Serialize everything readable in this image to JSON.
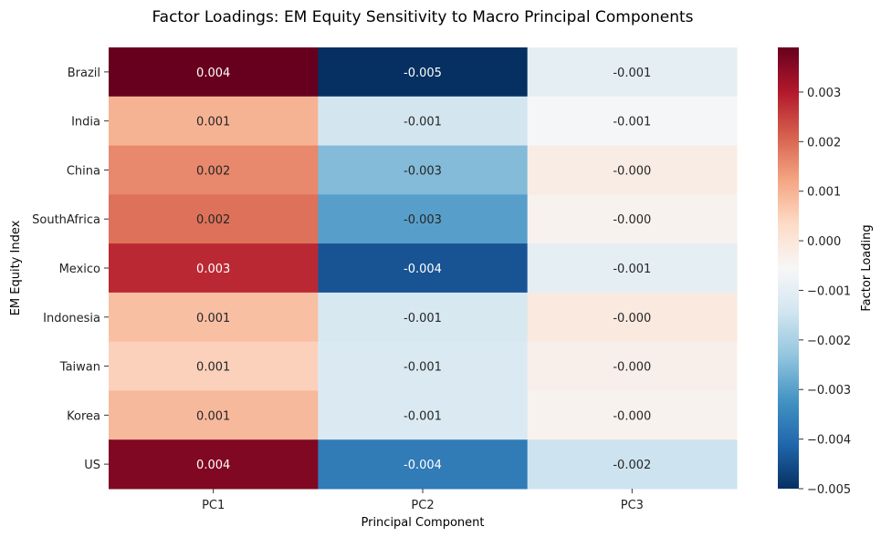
{
  "chart_data": {
    "type": "heatmap",
    "title": "Factor Loadings: EM Equity Sensitivity to Macro Principal Components",
    "xlabel": "Principal Component",
    "ylabel": "EM Equity Index",
    "x_categories": [
      "PC1",
      "PC2",
      "PC3"
    ],
    "y_categories": [
      "Brazil",
      "India",
      "China",
      "SouthAfrica",
      "Mexico",
      "Indonesia",
      "Taiwan",
      "Korea",
      "US"
    ],
    "values": [
      [
        0.0039,
        -0.005,
        -0.001
      ],
      [
        0.001,
        -0.0014,
        -0.0006
      ],
      [
        0.0016,
        -0.0025,
        -0.0002
      ],
      [
        0.0019,
        -0.003,
        -0.0004
      ],
      [
        0.0028,
        -0.0044,
        -0.001
      ],
      [
        0.0008,
        -0.0013,
        -0.0001
      ],
      [
        0.0005,
        -0.0012,
        -0.0003
      ],
      [
        0.0009,
        -0.0012,
        -0.0004
      ],
      [
        0.0036,
        -0.0037,
        -0.0015
      ]
    ],
    "cell_labels": [
      [
        "0.004",
        "-0.005",
        "-0.001"
      ],
      [
        "0.001",
        "-0.001",
        "-0.001"
      ],
      [
        "0.002",
        "-0.003",
        "-0.000"
      ],
      [
        "0.002",
        "-0.003",
        "-0.000"
      ],
      [
        "0.003",
        "-0.004",
        "-0.001"
      ],
      [
        "0.001",
        "-0.001",
        "-0.000"
      ],
      [
        "0.001",
        "-0.001",
        "-0.000"
      ],
      [
        "0.001",
        "-0.001",
        "-0.000"
      ],
      [
        "0.004",
        "-0.004",
        "-0.002"
      ]
    ],
    "colormap": "RdBu_r",
    "vmin": -0.005,
    "vmax": 0.0039,
    "colorbar": {
      "label": "Factor Loading",
      "ticks": [
        -0.005,
        -0.004,
        -0.003,
        -0.002,
        -0.001,
        0.0,
        0.001,
        0.002,
        0.003
      ],
      "tick_labels": [
        "−0.005",
        "−0.004",
        "−0.003",
        "−0.002",
        "−0.001",
        "0.000",
        "0.001",
        "0.002",
        "0.003"
      ]
    }
  }
}
